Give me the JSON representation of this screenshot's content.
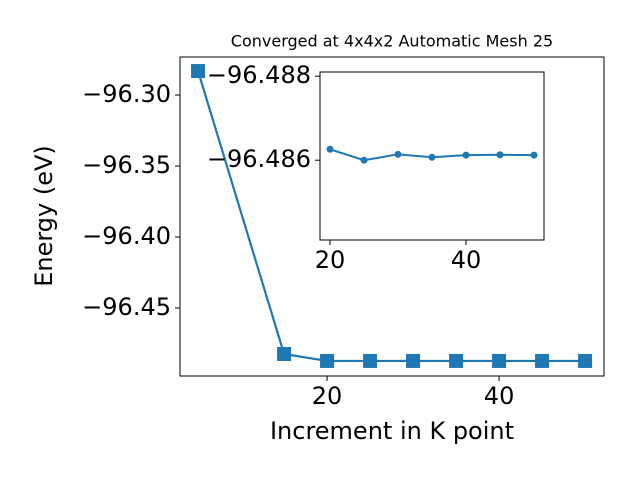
{
  "chart_data": [
    {
      "type": "line",
      "title": "Converged at 4x4x2 Automatic Mesh 25",
      "x_label": "Increment in K point",
      "y_label": "Energy (eV)",
      "x": [
        5,
        15,
        20,
        25,
        30,
        35,
        40,
        45,
        50
      ],
      "series": [
        {
          "color": "#1f77b4",
          "marker": "square",
          "values": [
            -96.2831,
            -96.4824,
            -96.4873,
            -96.4873,
            -96.4873,
            -96.4873,
            -96.4873,
            -96.4873,
            -96.4873
          ]
        }
      ],
      "xlim": [
        2.9,
        52.2
      ],
      "ylim": [
        -96.4979,
        -96.2732
      ],
      "xticks": [
        20,
        40
      ],
      "yticks": [
        {
          "value": -96.3,
          "label": "−96.30"
        },
        {
          "value": -96.35,
          "label": "−96.35"
        },
        {
          "value": -96.4,
          "label": "−96.40"
        },
        {
          "value": -96.45,
          "label": "−96.45"
        }
      ]
    },
    {
      "type": "line",
      "x": [
        20,
        25,
        30,
        35,
        40,
        45,
        50
      ],
      "series": [
        {
          "color": "#1f77b4",
          "marker": "circle",
          "values": [
            -96.48626,
            -96.486,
            -96.48614,
            -96.48607,
            -96.48612,
            -96.48613,
            -96.48612
          ]
        }
      ],
      "xlim": [
        18.53,
        51.47
      ],
      "ylim": [
        -96.4841,
        -96.4881
      ],
      "xticks": [
        20,
        40
      ],
      "yticks": [
        {
          "value": -96.488,
          "label": "−96.488"
        },
        {
          "value": -96.486,
          "label": "−96.486"
        }
      ]
    }
  ]
}
